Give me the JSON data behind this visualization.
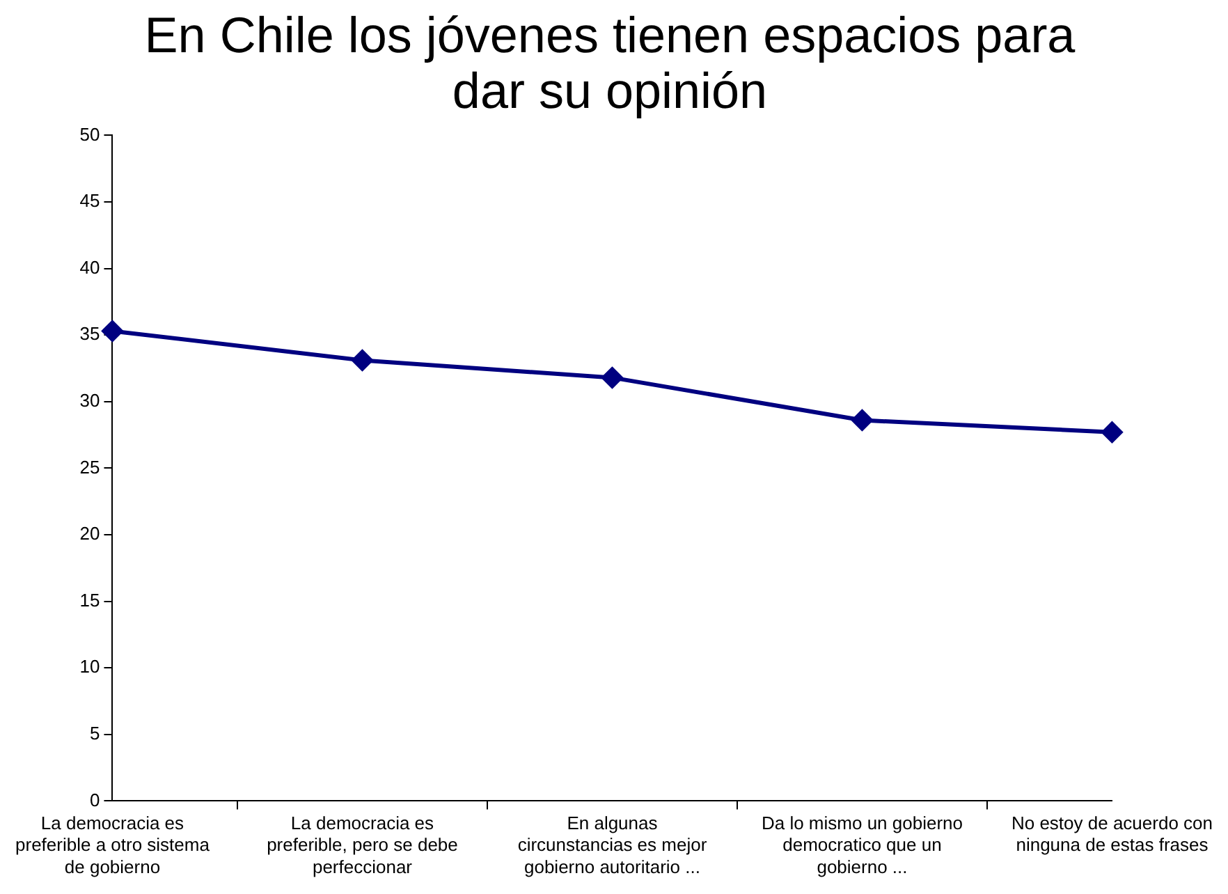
{
  "chart_data": {
    "type": "line",
    "title": "En Chile los jóvenes tienen espacios para dar su opinión",
    "categories": [
      "La democracia es preferible a otro sistema de gobierno",
      "La democracia es preferible, pero se debe perfeccionar",
      "En algunas circunstancias es mejor gobierno autoritario ...",
      "Da lo mismo un gobierno democratico que un gobierno ...",
      "No estoy de acuerdo con ninguna de estas frases"
    ],
    "series": [
      {
        "color": "#000080",
        "values": [
          35.3,
          33.1,
          31.8,
          28.6,
          27.7
        ]
      }
    ],
    "ylim": [
      0,
      50
    ],
    "yticks": [
      0,
      5,
      10,
      15,
      20,
      25,
      30,
      35,
      40,
      45,
      50
    ],
    "grid": false,
    "legend": false,
    "marker": "diamond",
    "line_style": "solid"
  }
}
